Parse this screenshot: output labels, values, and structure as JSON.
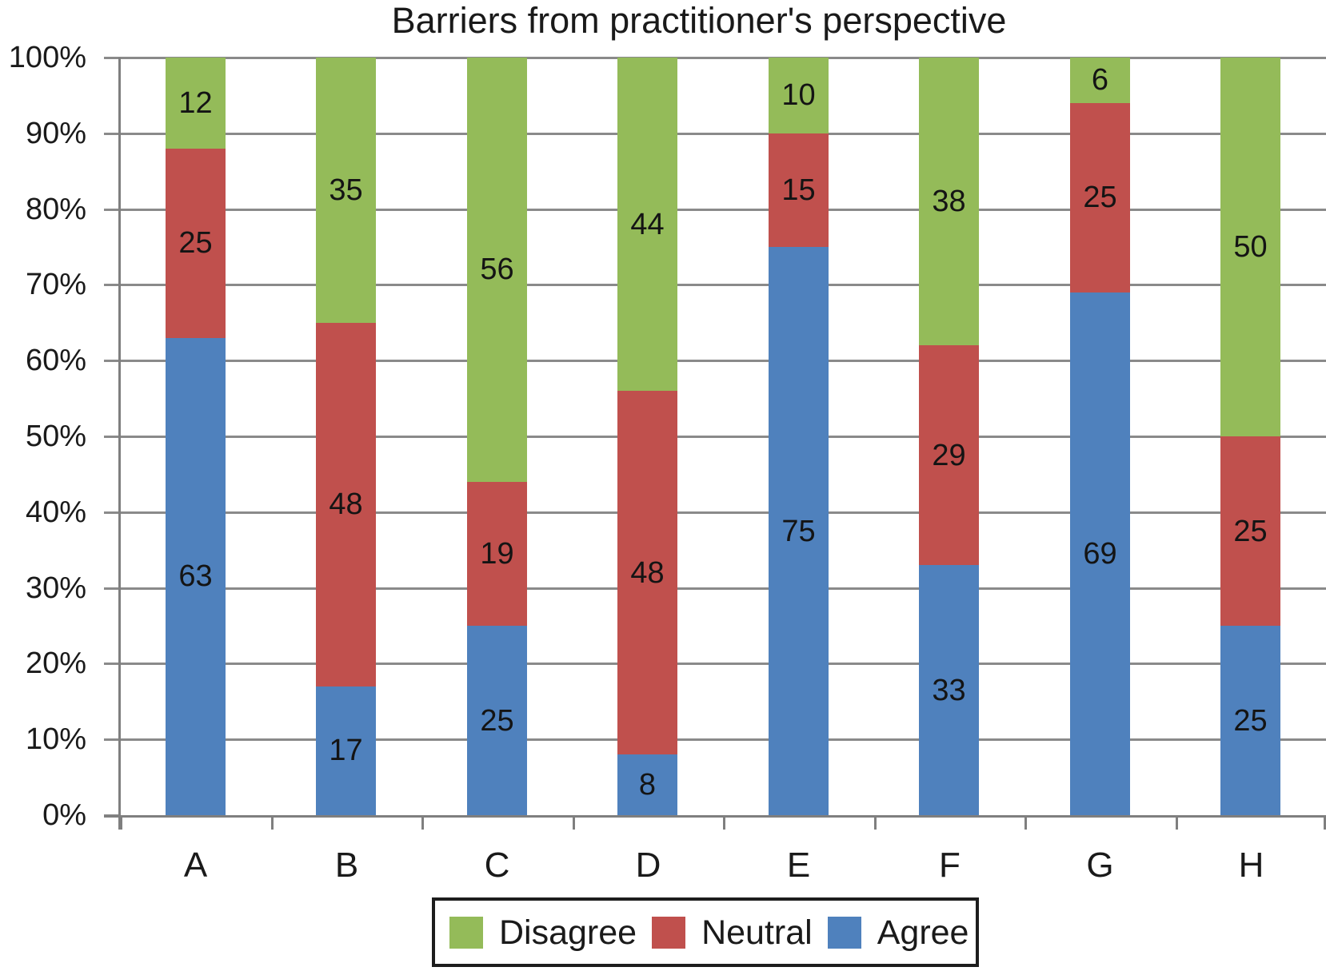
{
  "chart_data": {
    "type": "bar",
    "subtype": "stacked-100-percent",
    "title": "Barriers from practitioner's perspective",
    "categories": [
      "A",
      "B",
      "C",
      "D",
      "E",
      "F",
      "G",
      "H"
    ],
    "series": [
      {
        "name": "Agree",
        "color": "#4F81BD",
        "values": [
          63,
          17,
          25,
          8,
          75,
          33,
          69,
          25
        ]
      },
      {
        "name": "Neutral",
        "color": "#C0504D",
        "values": [
          25,
          48,
          19,
          48,
          15,
          29,
          25,
          25
        ]
      },
      {
        "name": "Disagree",
        "color": "#94BB59",
        "values": [
          12,
          35,
          56,
          44,
          10,
          38,
          6,
          50
        ]
      }
    ],
    "stack_order_bottom_to_top": [
      "Agree",
      "Neutral",
      "Disagree"
    ],
    "data_labels": "center",
    "xlabel": "",
    "ylabel": "",
    "y_axis": {
      "min": 0,
      "max": 100,
      "tick_labels": [
        "0%",
        "10%",
        "20%",
        "30%",
        "40%",
        "50%",
        "60%",
        "70%",
        "80%",
        "90%",
        "100%"
      ]
    },
    "grid": true,
    "legend": {
      "position": "bottom",
      "order": [
        "Disagree",
        "Neutral",
        "Agree"
      ]
    }
  },
  "colors": {
    "background": "#FFFFFF",
    "gridline": "#8A8A8A",
    "axis": "#7F7F7F",
    "text": "#1A1A1A",
    "legend_border": "#1D1D1D"
  }
}
